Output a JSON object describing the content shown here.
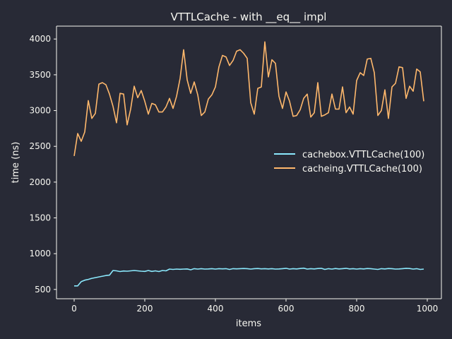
{
  "colors": {
    "background": "#282a36",
    "foreground": "#f8f8f2",
    "cachebox": "#8be9fd",
    "cacheing": "#ffb86c"
  },
  "chart_data": {
    "type": "line",
    "title": "VTTLCache - with __eq__ impl",
    "xlabel": "items",
    "ylabel": "time (ns)",
    "xlim": [
      -50,
      1040
    ],
    "ylim": [
      370,
      4180
    ],
    "xticks": [
      0,
      200,
      400,
      600,
      800,
      1000
    ],
    "yticks": [
      500,
      1000,
      1500,
      2000,
      2500,
      3000,
      3500,
      4000
    ],
    "grid": false,
    "legend_position": "center-right",
    "x": [
      0,
      10,
      20,
      30,
      40,
      50,
      60,
      70,
      80,
      90,
      100,
      110,
      120,
      130,
      140,
      150,
      160,
      170,
      180,
      190,
      200,
      210,
      220,
      230,
      240,
      250,
      260,
      270,
      280,
      290,
      300,
      310,
      320,
      330,
      340,
      350,
      360,
      370,
      380,
      390,
      400,
      410,
      420,
      430,
      440,
      450,
      460,
      470,
      480,
      490,
      500,
      510,
      520,
      530,
      540,
      550,
      560,
      570,
      580,
      590,
      600,
      610,
      620,
      630,
      640,
      650,
      660,
      670,
      680,
      690,
      700,
      710,
      720,
      730,
      740,
      750,
      760,
      770,
      780,
      790,
      800,
      810,
      820,
      830,
      840,
      850,
      860,
      870,
      880,
      890,
      900,
      910,
      920,
      930,
      940,
      950,
      960,
      970,
      980,
      990
    ],
    "series": [
      {
        "name": "cachebox.VTTLCache(100)",
        "color": "#8be9fd",
        "values": [
          550,
          550,
          610,
          630,
          640,
          655,
          665,
          675,
          685,
          695,
          700,
          765,
          760,
          750,
          758,
          755,
          760,
          765,
          760,
          755,
          752,
          765,
          752,
          760,
          750,
          765,
          760,
          785,
          780,
          785,
          782,
          785,
          787,
          775,
          790,
          785,
          790,
          785,
          787,
          790,
          785,
          790,
          788,
          790,
          780,
          790,
          788,
          790,
          792,
          790,
          785,
          790,
          792,
          788,
          790,
          787,
          790,
          785,
          787,
          790,
          795,
          785,
          790,
          787,
          792,
          797,
          785,
          790,
          787,
          792,
          795,
          780,
          790,
          785,
          792,
          787,
          790,
          795,
          787,
          790,
          785,
          790,
          787,
          792,
          790,
          785,
          780,
          790,
          787,
          792,
          790,
          785,
          787,
          790,
          795,
          792,
          785,
          790,
          780,
          785
        ]
      },
      {
        "name": "cacheing.VTTLCache(100)",
        "color": "#ffb86c",
        "values": [
          2365,
          2680,
          2570,
          2700,
          3140,
          2890,
          2960,
          3370,
          3390,
          3360,
          3230,
          3060,
          2830,
          3240,
          3230,
          2800,
          3020,
          3340,
          3180,
          3280,
          3130,
          2950,
          3100,
          3080,
          2980,
          2980,
          3050,
          3170,
          3030,
          3200,
          3450,
          3850,
          3430,
          3240,
          3400,
          3220,
          2930,
          2980,
          3160,
          3220,
          3330,
          3610,
          3770,
          3750,
          3630,
          3700,
          3830,
          3850,
          3800,
          3730,
          3110,
          2950,
          3310,
          3330,
          3960,
          3470,
          3710,
          3660,
          3200,
          3030,
          3260,
          3130,
          2920,
          2930,
          3010,
          3170,
          3230,
          2910,
          2970,
          3390,
          2920,
          2940,
          2970,
          3230,
          3020,
          3020,
          3330,
          2970,
          3050,
          2950,
          3420,
          3530,
          3490,
          3720,
          3730,
          3530,
          2930,
          3000,
          3290,
          2890,
          3330,
          3380,
          3610,
          3600,
          3170,
          3340,
          3270,
          3580,
          3540,
          3130
        ]
      }
    ]
  }
}
